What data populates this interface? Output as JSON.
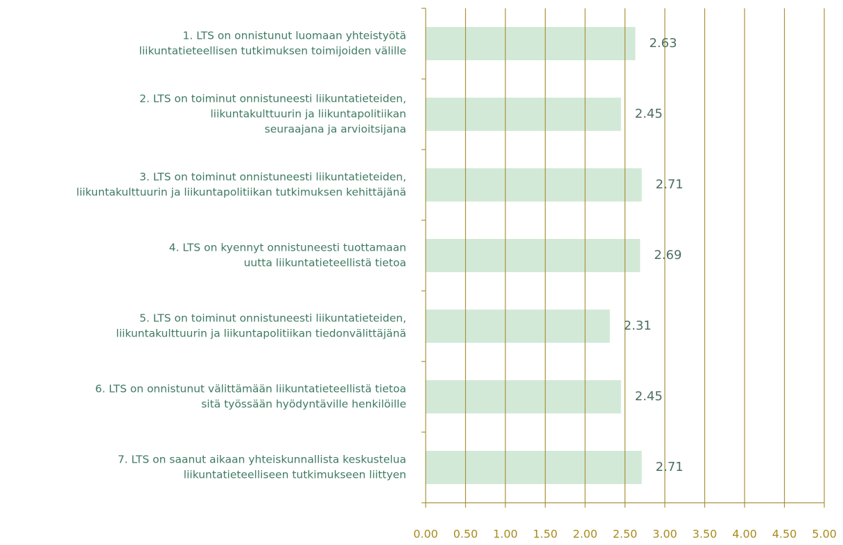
{
  "chart_data": {
    "type": "hbar",
    "categories": [
      [
        "1. LTS on onnistunut luomaan yhteistyötä",
        "liikuntatieteellisen tutkimuksen toimijoiden välille"
      ],
      [
        "2. LTS on toiminut onnistuneesti liikuntatieteiden,",
        "liikuntakulttuurin ja liikuntapolitiikan",
        "seuraajana ja arvioitsijana"
      ],
      [
        "3. LTS on toiminut onnistuneesti liikuntatieteiden,",
        "liikuntakulttuurin ja liikuntapolitiikan tutkimuksen kehittäjänä"
      ],
      [
        "4. LTS on kyennyt onnistuneesti tuottamaan",
        "uutta liikuntatieteellistä tietoa"
      ],
      [
        "5. LTS on toiminut onnistuneesti liikuntatieteiden,",
        "liikuntakulttuurin ja liikuntapolitiikan tiedonvälittäjänä"
      ],
      [
        "6. LTS on onnistunut välittämään liikuntatieteellistä tietoa",
        "sitä työssään hyödyntäville henkilöille"
      ],
      [
        "7. LTS on saanut aikaan yhteiskunnallista keskustelua",
        "liikuntatieteelliseen tutkimukseen liittyen"
      ]
    ],
    "values": [
      2.63,
      2.45,
      2.71,
      2.69,
      2.31,
      2.45,
      2.71
    ],
    "color": "#d3e9d7",
    "xlim": [
      0,
      5
    ],
    "xticks": [
      {
        "value": 0,
        "label": "0.00"
      },
      {
        "value": 0.5,
        "label": "0.50"
      },
      {
        "value": 1,
        "label": "1.00"
      },
      {
        "value": 1.5,
        "label": "1.50"
      },
      {
        "value": 2,
        "label": "2.00"
      },
      {
        "value": 2.5,
        "label": "2.50"
      },
      {
        "value": 3,
        "label": "3.00"
      },
      {
        "value": 3.5,
        "label": "3.50"
      },
      {
        "value": 4,
        "label": "4.00"
      },
      {
        "value": 4.5,
        "label": "4.50"
      },
      {
        "value": 5,
        "label": "5.00"
      }
    ],
    "grid": true
  }
}
